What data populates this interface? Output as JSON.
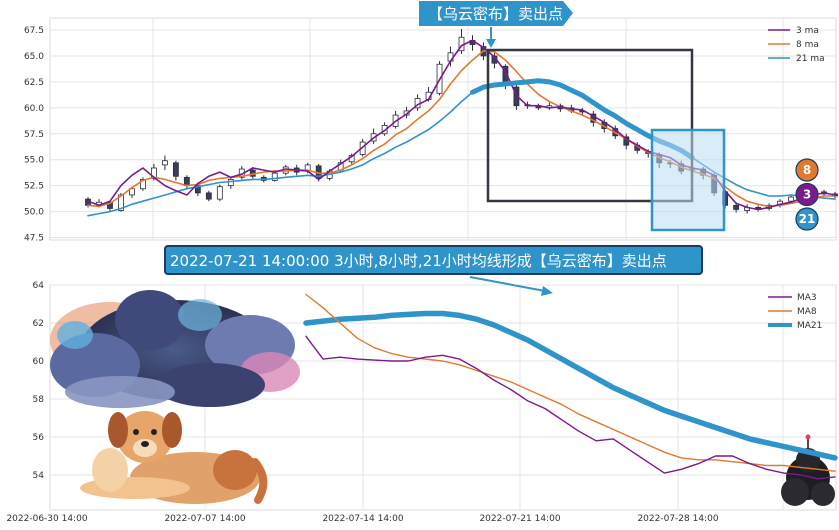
{
  "chart_data": [
    {
      "type": "candlestick",
      "title": "",
      "callout_label": "【乌云密布】卖出点",
      "ylim": [
        47.5,
        68.0
      ],
      "y_ticks": [
        "47.5",
        "50.0",
        "52.5",
        "55.0",
        "57.5",
        "60.0",
        "62.5",
        "65.0",
        "67.5"
      ],
      "grid": true,
      "legend_position": "top-right",
      "legend": [
        {
          "name": "3 ma",
          "color": "#7b1a8a"
        },
        {
          "name": "8 ma",
          "color": "#e07a2e"
        },
        {
          "name": "21 ma",
          "color": "#2e94c9"
        }
      ],
      "badges": [
        {
          "label": "8",
          "color": "#e07a2e"
        },
        {
          "label": "3",
          "color": "#7b1a8a"
        },
        {
          "label": "21",
          "color": "#2e94c9"
        }
      ],
      "ma3": [
        51.0,
        50.6,
        51.0,
        52.5,
        53.5,
        54.2,
        53.3,
        52.5,
        52.0,
        51.6,
        52.7,
        53.4,
        53.8,
        53.3,
        53.6,
        54.2,
        54.0,
        53.8,
        54.1,
        54.0,
        53.9,
        53.1,
        53.9,
        54.6,
        55.3,
        56.2,
        57.1,
        57.8,
        58.7,
        59.4,
        60.3,
        60.8,
        62.7,
        64.5,
        66.0,
        66.5,
        65.8,
        64.9,
        63.5,
        61.2,
        60.2,
        60.2,
        60.0,
        60.1,
        59.9,
        59.8,
        59.2,
        58.6,
        57.9,
        57.0,
        56.4,
        55.8,
        55.5,
        55.2,
        54.5,
        54.2,
        54.0,
        53.5,
        52.0,
        50.8,
        50.4,
        50.2,
        50.4,
        50.7,
        50.9,
        51.3,
        51.6,
        51.8,
        51.6
      ],
      "ma8": [
        50.6,
        50.5,
        50.8,
        51.5,
        52.3,
        53.0,
        53.3,
        53.1,
        52.8,
        52.5,
        52.6,
        53.0,
        53.2,
        53.3,
        53.4,
        53.6,
        53.8,
        53.9,
        53.9,
        54.0,
        54.0,
        53.7,
        53.7,
        54.0,
        54.5,
        55.1,
        55.9,
        56.5,
        57.4,
        58.0,
        58.9,
        59.7,
        60.8,
        62.3,
        63.6,
        64.6,
        65.5,
        65.4,
        64.6,
        63.5,
        62.3,
        61.3,
        60.6,
        60.1,
        59.7,
        59.3,
        58.8,
        58.2,
        57.6,
        57.0,
        56.3,
        55.7,
        55.2,
        54.8,
        54.3,
        53.9,
        53.6,
        53.2,
        52.4,
        51.6,
        51.0,
        50.7,
        50.5,
        50.6,
        50.8,
        51.0,
        51.3,
        51.5,
        51.5
      ],
      "ma21": [
        49.6,
        49.8,
        50.0,
        50.3,
        50.7,
        51.0,
        51.3,
        51.6,
        51.9,
        52.2,
        52.4,
        52.6,
        52.8,
        52.9,
        53.0,
        53.1,
        53.1,
        53.2,
        53.3,
        53.4,
        53.5,
        53.4,
        53.6,
        53.8,
        54.1,
        54.5,
        55.1,
        55.6,
        56.2,
        56.7,
        57.3,
        57.9,
        58.7,
        59.6,
        60.6,
        61.5,
        62.0,
        62.2,
        62.3,
        62.4,
        62.5,
        62.6,
        62.5,
        62.2,
        61.7,
        61.2,
        60.5,
        59.8,
        59.2,
        58.5,
        57.9,
        57.3,
        56.8,
        56.4,
        55.9,
        55.2,
        54.5,
        53.8,
        53.2,
        52.6,
        52.1,
        51.8,
        51.5,
        51.5,
        51.6,
        51.5,
        51.4,
        51.3,
        51.2
      ],
      "candles": [
        [
          51.2,
          50.6,
          51.4,
          50.4
        ],
        [
          50.6,
          50.9,
          51.2,
          50.4
        ],
        [
          50.9,
          50.3,
          51.0,
          50.0
        ],
        [
          50.1,
          51.6,
          51.8,
          50.0
        ],
        [
          51.6,
          52.2,
          52.4,
          51.3
        ],
        [
          52.2,
          53.1,
          53.3,
          52.0
        ],
        [
          53.2,
          54.2,
          54.6,
          53.0
        ],
        [
          54.5,
          54.9,
          55.4,
          54.0
        ],
        [
          54.7,
          53.4,
          54.9,
          53.0
        ],
        [
          53.3,
          52.5,
          53.5,
          52.2
        ],
        [
          52.5,
          51.8,
          52.8,
          51.5
        ],
        [
          51.8,
          51.2,
          52.0,
          51.0
        ],
        [
          51.2,
          52.4,
          52.6,
          51.0
        ],
        [
          52.5,
          53.1,
          53.3,
          52.2
        ],
        [
          53.3,
          54.1,
          54.4,
          53.1
        ],
        [
          54.0,
          53.4,
          54.3,
          53.2
        ],
        [
          53.3,
          53.0,
          53.5,
          52.8
        ],
        [
          53.0,
          53.7,
          54.0,
          52.9
        ],
        [
          53.7,
          54.3,
          54.5,
          53.5
        ],
        [
          54.2,
          53.8,
          54.5,
          53.5
        ],
        [
          53.9,
          54.5,
          54.7,
          53.7
        ],
        [
          54.4,
          53.2,
          54.6,
          52.9
        ],
        [
          53.2,
          53.9,
          54.1,
          53.0
        ],
        [
          54.0,
          54.7,
          55.0,
          53.8
        ],
        [
          54.8,
          55.4,
          55.6,
          54.6
        ],
        [
          55.5,
          56.7,
          57.0,
          55.3
        ],
        [
          56.8,
          57.5,
          58.0,
          56.5
        ],
        [
          57.5,
          58.3,
          58.6,
          57.3
        ],
        [
          58.2,
          59.3,
          59.7,
          58.0
        ],
        [
          59.3,
          59.7,
          60.1,
          59.0
        ],
        [
          60.0,
          60.9,
          61.3,
          59.7
        ],
        [
          60.8,
          61.5,
          62.0,
          60.6
        ],
        [
          61.4,
          64.2,
          64.5,
          61.2
        ],
        [
          64.5,
          65.3,
          65.9,
          64.0
        ],
        [
          65.5,
          66.8,
          67.6,
          65.2
        ],
        [
          66.5,
          66.1,
          67.0,
          65.5
        ],
        [
          65.9,
          65.0,
          66.3,
          64.6
        ],
        [
          65.0,
          64.3,
          65.3,
          63.8
        ],
        [
          64.0,
          62.2,
          64.2,
          61.8
        ],
        [
          62.0,
          60.2,
          62.3,
          59.8
        ],
        [
          60.3,
          60.2,
          60.6,
          59.9
        ],
        [
          60.2,
          60.0,
          60.4,
          59.8
        ],
        [
          60.0,
          60.2,
          60.5,
          59.8
        ],
        [
          60.2,
          59.9,
          60.4,
          59.6
        ],
        [
          60.0,
          59.7,
          60.3,
          59.5
        ],
        [
          59.7,
          59.6,
          60.0,
          59.2
        ],
        [
          59.4,
          58.6,
          59.7,
          58.2
        ],
        [
          58.6,
          58.0,
          58.9,
          57.6
        ],
        [
          58.0,
          57.3,
          58.3,
          57.0
        ],
        [
          57.2,
          56.4,
          57.5,
          56.0
        ],
        [
          56.4,
          55.9,
          56.7,
          55.6
        ],
        [
          55.8,
          55.6,
          56.0,
          55.2
        ],
        [
          55.5,
          54.7,
          55.7,
          54.2
        ],
        [
          54.7,
          54.6,
          55.0,
          54.2
        ],
        [
          54.6,
          53.9,
          54.9,
          53.6
        ],
        [
          54.0,
          54.2,
          54.5,
          53.7
        ],
        [
          54.1,
          53.5,
          54.3,
          53.1
        ],
        [
          53.5,
          51.8,
          53.7,
          51.5
        ],
        [
          51.9,
          50.6,
          52.1,
          50.3
        ],
        [
          50.6,
          50.2,
          50.9,
          49.9
        ],
        [
          50.1,
          50.4,
          50.7,
          49.8
        ],
        [
          50.4,
          50.2,
          50.6,
          50.0
        ],
        [
          50.3,
          50.6,
          50.8,
          50.1
        ],
        [
          50.6,
          51.0,
          51.2,
          50.4
        ],
        [
          51.0,
          51.4,
          51.6,
          50.8
        ],
        [
          51.4,
          51.6,
          51.8,
          51.2
        ],
        [
          51.6,
          51.9,
          52.1,
          51.4
        ],
        [
          51.9,
          51.7,
          52.1,
          51.5
        ],
        [
          51.7,
          51.5,
          51.9,
          51.3
        ]
      ]
    },
    {
      "type": "line",
      "title": "",
      "caption": "2022-07-21 14:00:00 3小时,8小时,21小时均线形成【乌云密布】卖出点",
      "ylim": [
        52.6,
        64.0
      ],
      "y_ticks": [
        "54",
        "56",
        "58",
        "60",
        "62",
        "64"
      ],
      "x_ticks": [
        "2022-06-30 14:00",
        "2022-07-07 14:00",
        "2022-07-14 14:00",
        "2022-07-21 14:00",
        "2022-07-28 14:00"
      ],
      "grid": true,
      "legend_position": "top-right",
      "series": [
        {
          "name": "MA3",
          "color": "#7b1a8a",
          "values": [
            61.3,
            60.1,
            60.2,
            60.1,
            60.05,
            60.0,
            60.0,
            60.2,
            60.3,
            60.1,
            59.6,
            59.0,
            58.5,
            57.9,
            57.5,
            56.9,
            56.3,
            55.8,
            55.9,
            55.3,
            54.7,
            54.1,
            54.3,
            54.6,
            55.0,
            55.0,
            54.6,
            54.3,
            54.1,
            54.0,
            53.8,
            53.9
          ]
        },
        {
          "name": "MA8",
          "color": "#e07a2e",
          "values": [
            63.5,
            62.8,
            62.0,
            61.2,
            60.7,
            60.4,
            60.2,
            60.1,
            60.0,
            59.8,
            59.5,
            59.2,
            58.9,
            58.5,
            58.1,
            57.7,
            57.2,
            56.8,
            56.4,
            56.0,
            55.6,
            55.2,
            54.9,
            54.8,
            54.8,
            54.7,
            54.6,
            54.5,
            54.5,
            54.4,
            54.3,
            54.2
          ]
        },
        {
          "name": "MA21",
          "color": "#2e94c9",
          "values": [
            62.0,
            62.1,
            62.2,
            62.25,
            62.3,
            62.4,
            62.45,
            62.5,
            62.5,
            62.4,
            62.2,
            61.9,
            61.5,
            61.1,
            60.6,
            60.1,
            59.6,
            59.1,
            58.6,
            58.2,
            57.8,
            57.4,
            57.1,
            56.8,
            56.5,
            56.2,
            55.9,
            55.7,
            55.5,
            55.3,
            55.1,
            54.9
          ]
        }
      ]
    }
  ]
}
